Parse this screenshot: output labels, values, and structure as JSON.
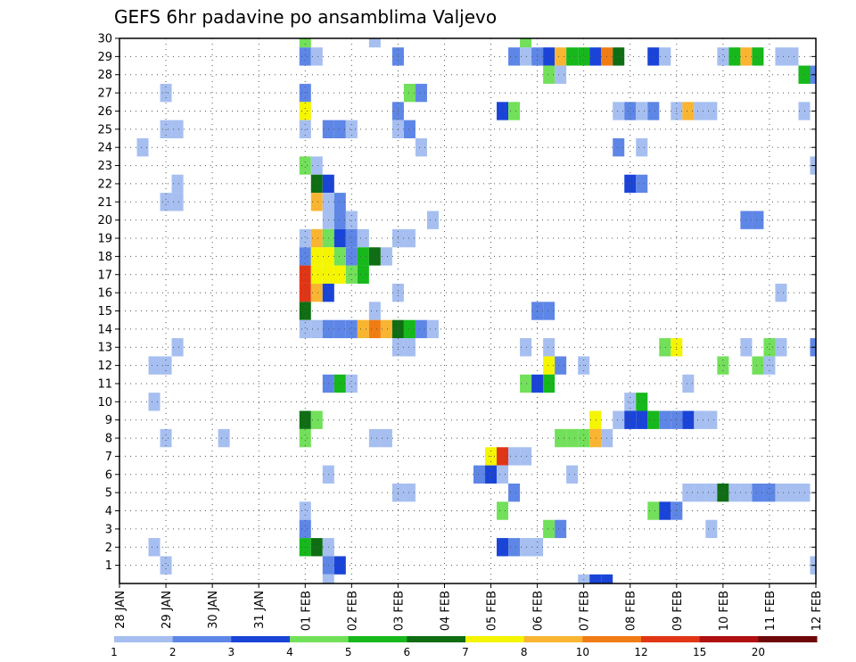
{
  "chart_data": {
    "type": "heatmap",
    "title": "GEFS 6hr padavine po ansamblima Valjevo",
    "y_ticks": [
      "1",
      "2",
      "3",
      "4",
      "5",
      "6",
      "7",
      "8",
      "9",
      "10",
      "11",
      "12",
      "13",
      "14",
      "15",
      "16",
      "17",
      "18",
      "19",
      "20",
      "21",
      "22",
      "23",
      "24",
      "25",
      "26",
      "27",
      "28",
      "29",
      "30"
    ],
    "x_ticks": [
      "28 JAN",
      "29 JAN",
      "30 JAN",
      "31 JAN",
      "01 FEB",
      "02 FEB",
      "03 FEB",
      "04 FEB",
      "05 FEB",
      "06 FEB",
      "07 FEB",
      "08 FEB",
      "09 FEB",
      "10 FEB",
      "11 FEB",
      "12 FEB"
    ],
    "xlim": [
      0,
      15
    ],
    "ylim": [
      0,
      30
    ],
    "grid": true,
    "legend_placement": "bottom",
    "color_levels": [
      "1",
      "2",
      "3",
      "4",
      "5",
      "6",
      "7",
      "8",
      "10",
      "12",
      "15",
      "20"
    ],
    "color_scale": [
      {
        "from": 1,
        "to": 2,
        "color": "#a6bff0"
      },
      {
        "from": 2,
        "to": 3,
        "color": "#5e86e6"
      },
      {
        "from": 3,
        "to": 4,
        "color": "#1a44d8"
      },
      {
        "from": 4,
        "to": 5,
        "color": "#72e05a"
      },
      {
        "from": 5,
        "to": 6,
        "color": "#16b81c"
      },
      {
        "from": 6,
        "to": 7,
        "color": "#0f6e13"
      },
      {
        "from": 7,
        "to": 8,
        "color": "#f5f500"
      },
      {
        "from": 8,
        "to": 10,
        "color": "#f9b531"
      },
      {
        "from": 10,
        "to": 12,
        "color": "#f07c14"
      },
      {
        "from": 12,
        "to": 15,
        "color": "#e13616"
      },
      {
        "from": 15,
        "to": 20,
        "color": "#b01010"
      },
      {
        "from": 20,
        "to": 25,
        "color": "#6e0808"
      }
    ],
    "cells": [
      {
        "member": 30,
        "t": 4.0,
        "v": 4.5
      },
      {
        "member": 30,
        "t": 5.5,
        "v": 1.5
      },
      {
        "member": 30,
        "t": 8.75,
        "v": 4.5
      },
      {
        "member": 29,
        "t": 4.0,
        "v": 2.5
      },
      {
        "member": 29,
        "t": 4.25,
        "v": 1.5
      },
      {
        "member": 29,
        "t": 6.0,
        "v": 2.5
      },
      {
        "member": 29,
        "t": 8.5,
        "v": 2.5
      },
      {
        "member": 29,
        "t": 8.75,
        "v": 1.5
      },
      {
        "member": 29,
        "t": 9.0,
        "v": 2.5
      },
      {
        "member": 29,
        "t": 9.25,
        "v": 3.5
      },
      {
        "member": 29,
        "t": 9.5,
        "v": 9
      },
      {
        "member": 29,
        "t": 9.75,
        "v": 5.5
      },
      {
        "member": 29,
        "t": 10.0,
        "v": 5.5
      },
      {
        "member": 29,
        "t": 10.25,
        "v": 3.5
      },
      {
        "member": 29,
        "t": 10.5,
        "v": 11
      },
      {
        "member": 29,
        "t": 10.75,
        "v": 6.5
      },
      {
        "member": 29,
        "t": 11.5,
        "v": 3.5
      },
      {
        "member": 29,
        "t": 11.75,
        "v": 1.5
      },
      {
        "member": 29,
        "t": 13.0,
        "v": 1.5
      },
      {
        "member": 29,
        "t": 13.25,
        "v": 5.5
      },
      {
        "member": 29,
        "t": 13.5,
        "v": 9
      },
      {
        "member": 29,
        "t": 13.75,
        "v": 5.5
      },
      {
        "member": 29,
        "t": 14.25,
        "v": 1.5
      },
      {
        "member": 29,
        "t": 14.5,
        "v": 1.5
      },
      {
        "member": 28,
        "t": 9.25,
        "v": 4.5
      },
      {
        "member": 28,
        "t": 9.5,
        "v": 1.5
      },
      {
        "member": 28,
        "t": 14.75,
        "v": 5.5
      },
      {
        "member": 28,
        "t": 15.0,
        "v": 2.5
      },
      {
        "member": 27,
        "t": 1.0,
        "v": 1.5
      },
      {
        "member": 27,
        "t": 4.0,
        "v": 2.5
      },
      {
        "member": 27,
        "t": 6.25,
        "v": 4.5
      },
      {
        "member": 27,
        "t": 6.5,
        "v": 2.5
      },
      {
        "member": 26,
        "t": 4.0,
        "v": 7.5
      },
      {
        "member": 26,
        "t": 6.0,
        "v": 2.5
      },
      {
        "member": 26,
        "t": 8.25,
        "v": 3.5
      },
      {
        "member": 26,
        "t": 8.5,
        "v": 4.5
      },
      {
        "member": 26,
        "t": 10.75,
        "v": 1.5
      },
      {
        "member": 26,
        "t": 11.0,
        "v": 2.5
      },
      {
        "member": 26,
        "t": 11.25,
        "v": 1.5
      },
      {
        "member": 26,
        "t": 11.5,
        "v": 2.5
      },
      {
        "member": 26,
        "t": 12.0,
        "v": 1.5
      },
      {
        "member": 26,
        "t": 12.25,
        "v": 9
      },
      {
        "member": 26,
        "t": 12.5,
        "v": 1.5
      },
      {
        "member": 26,
        "t": 12.75,
        "v": 1.5
      },
      {
        "member": 26,
        "t": 14.75,
        "v": 1.5
      },
      {
        "member": 25,
        "t": 1.0,
        "v": 1.5
      },
      {
        "member": 25,
        "t": 1.25,
        "v": 1.5
      },
      {
        "member": 25,
        "t": 4.0,
        "v": 1.5
      },
      {
        "member": 25,
        "t": 4.5,
        "v": 2.5
      },
      {
        "member": 25,
        "t": 4.75,
        "v": 2.5
      },
      {
        "member": 25,
        "t": 5.0,
        "v": 1.5
      },
      {
        "member": 25,
        "t": 6.0,
        "v": 1.5
      },
      {
        "member": 25,
        "t": 6.25,
        "v": 2.5
      },
      {
        "member": 24,
        "t": 0.5,
        "v": 1.5
      },
      {
        "member": 24,
        "t": 6.5,
        "v": 1.5
      },
      {
        "member": 24,
        "t": 10.75,
        "v": 2.5
      },
      {
        "member": 24,
        "t": 11.25,
        "v": 1.5
      },
      {
        "member": 23,
        "t": 4.0,
        "v": 4.5
      },
      {
        "member": 23,
        "t": 4.25,
        "v": 1.5
      },
      {
        "member": 23,
        "t": 15.0,
        "v": 1.5
      },
      {
        "member": 22,
        "t": 1.25,
        "v": 1.5
      },
      {
        "member": 22,
        "t": 4.25,
        "v": 6.5
      },
      {
        "member": 22,
        "t": 4.5,
        "v": 3.5
      },
      {
        "member": 22,
        "t": 11.0,
        "v": 3.5
      },
      {
        "member": 22,
        "t": 11.25,
        "v": 2.5
      },
      {
        "member": 21,
        "t": 1.0,
        "v": 1.5
      },
      {
        "member": 21,
        "t": 1.25,
        "v": 1.5
      },
      {
        "member": 21,
        "t": 4.25,
        "v": 9
      },
      {
        "member": 21,
        "t": 4.5,
        "v": 1.5
      },
      {
        "member": 21,
        "t": 4.75,
        "v": 2.5
      },
      {
        "member": 20,
        "t": 4.5,
        "v": 1.5
      },
      {
        "member": 20,
        "t": 4.75,
        "v": 2.5
      },
      {
        "member": 20,
        "t": 5.0,
        "v": 1.5
      },
      {
        "member": 20,
        "t": 6.75,
        "v": 1.5
      },
      {
        "member": 20,
        "t": 13.5,
        "v": 2.5
      },
      {
        "member": 20,
        "t": 13.75,
        "v": 2.5
      },
      {
        "member": 19,
        "t": 4.0,
        "v": 1.5
      },
      {
        "member": 19,
        "t": 4.25,
        "v": 9
      },
      {
        "member": 19,
        "t": 4.5,
        "v": 4.5
      },
      {
        "member": 19,
        "t": 4.75,
        "v": 3.5
      },
      {
        "member": 19,
        "t": 5.0,
        "v": 2.5
      },
      {
        "member": 19,
        "t": 5.25,
        "v": 1.5
      },
      {
        "member": 19,
        "t": 6.0,
        "v": 1.5
      },
      {
        "member": 19,
        "t": 6.25,
        "v": 1.5
      },
      {
        "member": 18,
        "t": 4.0,
        "v": 2.5
      },
      {
        "member": 18,
        "t": 4.25,
        "v": 7.5
      },
      {
        "member": 18,
        "t": 4.5,
        "v": 7.5
      },
      {
        "member": 18,
        "t": 4.75,
        "v": 4.5
      },
      {
        "member": 18,
        "t": 5.0,
        "v": 2.5
      },
      {
        "member": 18,
        "t": 5.25,
        "v": 5.5
      },
      {
        "member": 18,
        "t": 5.5,
        "v": 6.5
      },
      {
        "member": 18,
        "t": 5.75,
        "v": 1.5
      },
      {
        "member": 17,
        "t": 4.0,
        "v": 13
      },
      {
        "member": 17,
        "t": 4.25,
        "v": 7.5
      },
      {
        "member": 17,
        "t": 4.5,
        "v": 7.5
      },
      {
        "member": 17,
        "t": 4.75,
        "v": 7.5
      },
      {
        "member": 17,
        "t": 5.0,
        "v": 4.5
      },
      {
        "member": 17,
        "t": 5.25,
        "v": 5.5
      },
      {
        "member": 16,
        "t": 4.0,
        "v": 13
      },
      {
        "member": 16,
        "t": 4.25,
        "v": 9
      },
      {
        "member": 16,
        "t": 4.5,
        "v": 3.5
      },
      {
        "member": 16,
        "t": 6.0,
        "v": 1.5
      },
      {
        "member": 16,
        "t": 14.25,
        "v": 1.5
      },
      {
        "member": 15,
        "t": 4.0,
        "v": 6.5
      },
      {
        "member": 15,
        "t": 5.5,
        "v": 1.5
      },
      {
        "member": 15,
        "t": 9.0,
        "v": 2.5
      },
      {
        "member": 15,
        "t": 9.25,
        "v": 2.5
      },
      {
        "member": 14,
        "t": 4.0,
        "v": 1.5
      },
      {
        "member": 14,
        "t": 4.25,
        "v": 1.5
      },
      {
        "member": 14,
        "t": 4.5,
        "v": 2.5
      },
      {
        "member": 14,
        "t": 4.75,
        "v": 2.5
      },
      {
        "member": 14,
        "t": 5.0,
        "v": 2.5
      },
      {
        "member": 14,
        "t": 5.25,
        "v": 9
      },
      {
        "member": 14,
        "t": 5.5,
        "v": 11
      },
      {
        "member": 14,
        "t": 5.75,
        "v": 9
      },
      {
        "member": 14,
        "t": 6.0,
        "v": 6.5
      },
      {
        "member": 14,
        "t": 6.25,
        "v": 5.5
      },
      {
        "member": 14,
        "t": 6.5,
        "v": 2.5
      },
      {
        "member": 14,
        "t": 6.75,
        "v": 1.5
      },
      {
        "member": 13,
        "t": 1.25,
        "v": 1.5
      },
      {
        "member": 13,
        "t": 6.0,
        "v": 1.5
      },
      {
        "member": 13,
        "t": 6.25,
        "v": 1.5
      },
      {
        "member": 13,
        "t": 8.75,
        "v": 1.5
      },
      {
        "member": 13,
        "t": 9.25,
        "v": 1.5
      },
      {
        "member": 13,
        "t": 11.75,
        "v": 4.5
      },
      {
        "member": 13,
        "t": 12.0,
        "v": 7.5
      },
      {
        "member": 13,
        "t": 13.5,
        "v": 1.5
      },
      {
        "member": 13,
        "t": 14.0,
        "v": 4.5
      },
      {
        "member": 13,
        "t": 14.25,
        "v": 1.5
      },
      {
        "member": 13,
        "t": 15.0,
        "v": 2.5
      },
      {
        "member": 12,
        "t": 0.75,
        "v": 1.5
      },
      {
        "member": 12,
        "t": 1.0,
        "v": 1.5
      },
      {
        "member": 12,
        "t": 9.25,
        "v": 7.5
      },
      {
        "member": 12,
        "t": 9.5,
        "v": 2.5
      },
      {
        "member": 12,
        "t": 10.0,
        "v": 1.5
      },
      {
        "member": 12,
        "t": 13.0,
        "v": 4.5
      },
      {
        "member": 12,
        "t": 13.75,
        "v": 4.5
      },
      {
        "member": 12,
        "t": 14.0,
        "v": 1.5
      },
      {
        "member": 11,
        "t": 4.5,
        "v": 2.5
      },
      {
        "member": 11,
        "t": 4.75,
        "v": 5.5
      },
      {
        "member": 11,
        "t": 5.0,
        "v": 1.5
      },
      {
        "member": 11,
        "t": 8.75,
        "v": 4.5
      },
      {
        "member": 11,
        "t": 9.0,
        "v": 3.5
      },
      {
        "member": 11,
        "t": 9.25,
        "v": 5.5
      },
      {
        "member": 11,
        "t": 12.25,
        "v": 1.5
      },
      {
        "member": 10,
        "t": 0.75,
        "v": 1.5
      },
      {
        "member": 10,
        "t": 11.0,
        "v": 1.5
      },
      {
        "member": 10,
        "t": 11.25,
        "v": 5.5
      },
      {
        "member": 9,
        "t": 4.0,
        "v": 6.5
      },
      {
        "member": 9,
        "t": 4.25,
        "v": 4.5
      },
      {
        "member": 9,
        "t": 10.25,
        "v": 7.5
      },
      {
        "member": 9,
        "t": 10.75,
        "v": 1.5
      },
      {
        "member": 9,
        "t": 11.0,
        "v": 3.5
      },
      {
        "member": 9,
        "t": 11.25,
        "v": 3.5
      },
      {
        "member": 9,
        "t": 11.5,
        "v": 5.5
      },
      {
        "member": 9,
        "t": 11.75,
        "v": 2.5
      },
      {
        "member": 9,
        "t": 12.0,
        "v": 2.5
      },
      {
        "member": 9,
        "t": 12.25,
        "v": 3.5
      },
      {
        "member": 9,
        "t": 12.5,
        "v": 1.5
      },
      {
        "member": 9,
        "t": 12.75,
        "v": 1.5
      },
      {
        "member": 8,
        "t": 1.0,
        "v": 1.5
      },
      {
        "member": 8,
        "t": 2.25,
        "v": 1.5
      },
      {
        "member": 8,
        "t": 4.0,
        "v": 4.5
      },
      {
        "member": 8,
        "t": 5.5,
        "v": 1.5
      },
      {
        "member": 8,
        "t": 5.75,
        "v": 1.5
      },
      {
        "member": 8,
        "t": 9.5,
        "v": 4.5
      },
      {
        "member": 8,
        "t": 9.75,
        "v": 4.5
      },
      {
        "member": 8,
        "t": 10.0,
        "v": 4.5
      },
      {
        "member": 8,
        "t": 10.25,
        "v": 9
      },
      {
        "member": 8,
        "t": 10.5,
        "v": 1.5
      },
      {
        "member": 7,
        "t": 8.0,
        "v": 7.5
      },
      {
        "member": 7,
        "t": 8.25,
        "v": 13
      },
      {
        "member": 7,
        "t": 8.5,
        "v": 1.5
      },
      {
        "member": 7,
        "t": 8.75,
        "v": 1.5
      },
      {
        "member": 6,
        "t": 4.5,
        "v": 1.5
      },
      {
        "member": 6,
        "t": 7.75,
        "v": 2.5
      },
      {
        "member": 6,
        "t": 8.0,
        "v": 3.5
      },
      {
        "member": 6,
        "t": 8.25,
        "v": 1.5
      },
      {
        "member": 6,
        "t": 9.75,
        "v": 1.5
      },
      {
        "member": 5,
        "t": 6.0,
        "v": 1.5
      },
      {
        "member": 5,
        "t": 6.25,
        "v": 1.5
      },
      {
        "member": 5,
        "t": 8.5,
        "v": 2.5
      },
      {
        "member": 5,
        "t": 12.25,
        "v": 1.5
      },
      {
        "member": 5,
        "t": 12.5,
        "v": 1.5
      },
      {
        "member": 5,
        "t": 12.75,
        "v": 1.5
      },
      {
        "member": 5,
        "t": 13.0,
        "v": 6.5
      },
      {
        "member": 5,
        "t": 13.25,
        "v": 1.5
      },
      {
        "member": 5,
        "t": 13.5,
        "v": 1.5
      },
      {
        "member": 5,
        "t": 13.75,
        "v": 2.5
      },
      {
        "member": 5,
        "t": 14.0,
        "v": 2.5
      },
      {
        "member": 5,
        "t": 14.25,
        "v": 1.5
      },
      {
        "member": 5,
        "t": 14.5,
        "v": 1.5
      },
      {
        "member": 5,
        "t": 14.75,
        "v": 1.5
      },
      {
        "member": 4,
        "t": 4.0,
        "v": 1.5
      },
      {
        "member": 4,
        "t": 8.25,
        "v": 4.5
      },
      {
        "member": 4,
        "t": 11.5,
        "v": 4.5
      },
      {
        "member": 4,
        "t": 11.75,
        "v": 3.5
      },
      {
        "member": 4,
        "t": 12.0,
        "v": 2.5
      },
      {
        "member": 3,
        "t": 4.0,
        "v": 2.5
      },
      {
        "member": 3,
        "t": 9.25,
        "v": 4.5
      },
      {
        "member": 3,
        "t": 9.5,
        "v": 2.5
      },
      {
        "member": 3,
        "t": 12.75,
        "v": 1.5
      },
      {
        "member": 2,
        "t": 0.75,
        "v": 1.5
      },
      {
        "member": 2,
        "t": 4.0,
        "v": 5.5
      },
      {
        "member": 2,
        "t": 4.25,
        "v": 6.5
      },
      {
        "member": 2,
        "t": 4.5,
        "v": 1.5
      },
      {
        "member": 2,
        "t": 8.25,
        "v": 3.5
      },
      {
        "member": 2,
        "t": 8.5,
        "v": 2.5
      },
      {
        "member": 2,
        "t": 8.75,
        "v": 1.5
      },
      {
        "member": 2,
        "t": 9.0,
        "v": 1.5
      },
      {
        "member": 1,
        "t": 1.0,
        "v": 1.5
      },
      {
        "member": 1,
        "t": 4.5,
        "v": 2.5
      },
      {
        "member": 1,
        "t": 4.75,
        "v": 3.5
      },
      {
        "member": 1,
        "t": 15.0,
        "v": 1.5
      },
      {
        "member": 0,
        "t": 4.5,
        "v": 1.5
      },
      {
        "member": 0,
        "t": 10.0,
        "v": 1.5
      },
      {
        "member": 0,
        "t": 10.25,
        "v": 3.5
      },
      {
        "member": 0,
        "t": 10.5,
        "v": 3.5
      }
    ]
  }
}
